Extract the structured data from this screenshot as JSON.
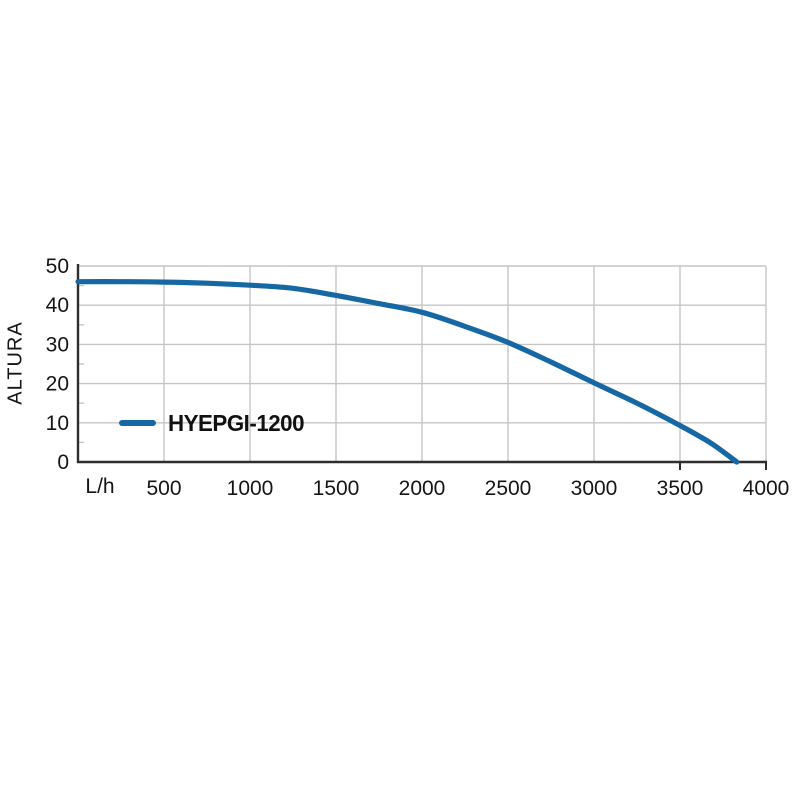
{
  "chart_data": {
    "type": "line",
    "title": "",
    "ylabel": "ALTURA",
    "x_unit_label": "L/h",
    "xlim": [
      0,
      4000
    ],
    "ylim": [
      0,
      50
    ],
    "x_ticks": [
      500,
      1000,
      1500,
      2000,
      2500,
      3000,
      3500,
      4000
    ],
    "y_ticks": [
      0,
      10,
      20,
      30,
      40,
      50
    ],
    "y_minor_tick_step": 5,
    "x_axis_small_ticks_below": [
      3500,
      4000
    ],
    "grid": true,
    "legend_position": "inside-lower-left",
    "series": [
      {
        "name": "HYEPGI-1200",
        "color": "#1568a3",
        "points": [
          [
            0,
            46
          ],
          [
            250,
            46
          ],
          [
            500,
            45.9
          ],
          [
            750,
            45.6
          ],
          [
            1000,
            45.1
          ],
          [
            1250,
            44.3
          ],
          [
            1500,
            42.5
          ],
          [
            1750,
            40.4
          ],
          [
            2000,
            38.2
          ],
          [
            2250,
            34.6
          ],
          [
            2500,
            30.5
          ],
          [
            2750,
            25.5
          ],
          [
            3000,
            20.2
          ],
          [
            3250,
            15.0
          ],
          [
            3500,
            9.3
          ],
          [
            3680,
            4.8
          ],
          [
            3830,
            0
          ]
        ]
      }
    ]
  },
  "colors": {
    "background": "#ffffff",
    "grid": "#c6c6c6",
    "axis": "#2e2e2e",
    "text": "#151515",
    "accent_blue": "#1568a3"
  },
  "layout_note": ""
}
